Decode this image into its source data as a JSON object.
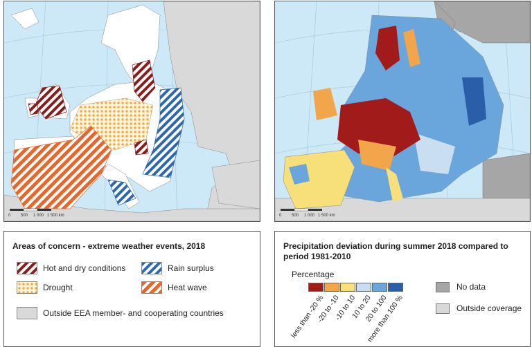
{
  "left_map": {
    "scalebar": [
      "0",
      "500",
      "1 000",
      "1 500 km"
    ]
  },
  "right_map": {
    "scalebar": [
      "0",
      "500",
      "1 000",
      "1 500 km"
    ]
  },
  "left_legend": {
    "title": "Areas of concern - extreme weather events, 2018",
    "items": {
      "hot_dry": "Hot and dry conditions",
      "rain": "Rain surplus",
      "drought": "Drought",
      "heat": "Heat wave",
      "outside": "Outside EEA member- and cooperating countries"
    },
    "colors": {
      "hot_dry": "#8b1a1a",
      "rain": "#2b68b0",
      "drought": "#f3a93f",
      "heat": "#e8662a",
      "outside": "#d9d9d9"
    }
  },
  "right_legend": {
    "title_line1": "Precipitation deviation during summer 2018 compared to",
    "title_line2": "period 1981-2010",
    "scale_title": "Percentage",
    "classes": [
      {
        "label": "less than -20 %",
        "color": "#a11b1b"
      },
      {
        "label": "-20 to -10",
        "color": "#f2a54a"
      },
      {
        "label": "-10 to 10",
        "color": "#f7e07a"
      },
      {
        "label": "10 to 20",
        "color": "#c9def0"
      },
      {
        "label": "20 to 100",
        "color": "#6aa6dc"
      },
      {
        "label": "more than 100 %",
        "color": "#2a5ea8"
      }
    ],
    "no_data": "No data",
    "outside": "Outside coverage",
    "no_data_color": "#a6a6a6",
    "outside_color": "#d9d9d9"
  }
}
